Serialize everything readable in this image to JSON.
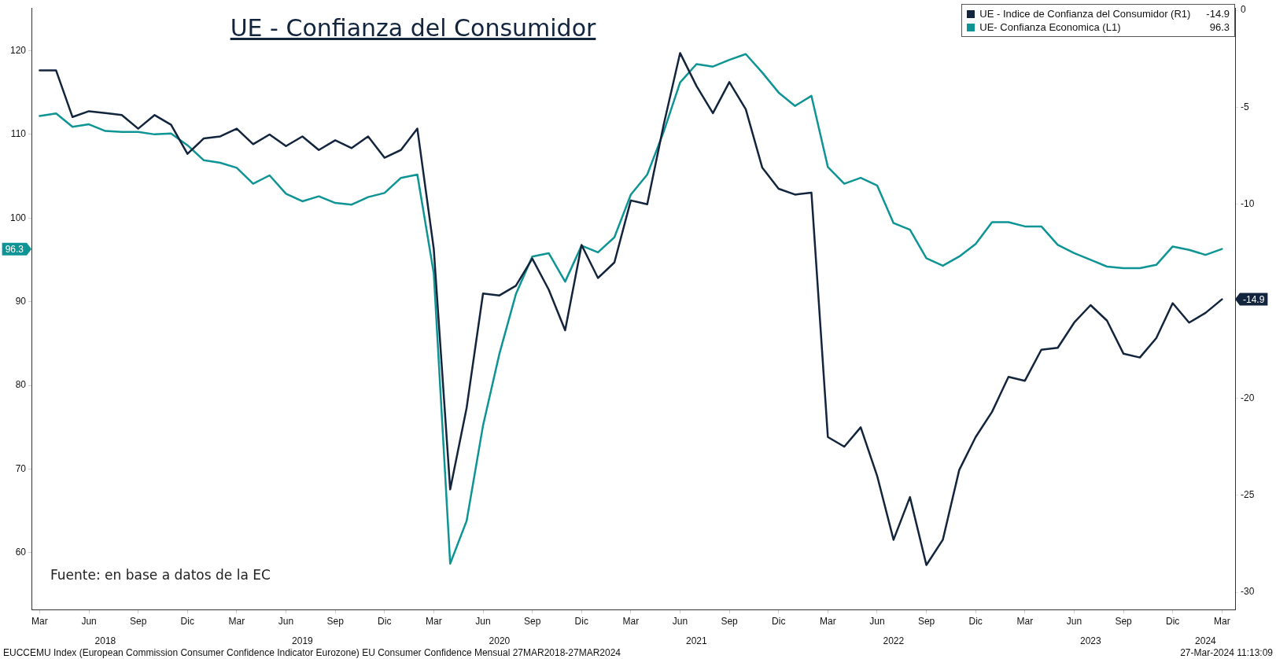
{
  "chart_data": {
    "type": "line",
    "title": "UE - Confianza del Consumidor",
    "x": [
      "2018-03",
      "2018-04",
      "2018-05",
      "2018-06",
      "2018-07",
      "2018-08",
      "2018-09",
      "2018-10",
      "2018-11",
      "2018-12",
      "2019-01",
      "2019-02",
      "2019-03",
      "2019-04",
      "2019-05",
      "2019-06",
      "2019-07",
      "2019-08",
      "2019-09",
      "2019-10",
      "2019-11",
      "2019-12",
      "2020-01",
      "2020-02",
      "2020-03",
      "2020-04",
      "2020-05",
      "2020-06",
      "2020-07",
      "2020-08",
      "2020-09",
      "2020-10",
      "2020-11",
      "2020-12",
      "2021-01",
      "2021-02",
      "2021-03",
      "2021-04",
      "2021-05",
      "2021-06",
      "2021-07",
      "2021-08",
      "2021-09",
      "2021-10",
      "2021-11",
      "2021-12",
      "2022-01",
      "2022-02",
      "2022-03",
      "2022-04",
      "2022-05",
      "2022-06",
      "2022-07",
      "2022-08",
      "2022-09",
      "2022-10",
      "2022-11",
      "2022-12",
      "2023-01",
      "2023-02",
      "2023-03",
      "2023-04",
      "2023-05",
      "2023-06",
      "2023-07",
      "2023-08",
      "2023-09",
      "2023-10",
      "2023-11",
      "2023-12",
      "2024-01",
      "2024-02",
      "2024-03"
    ],
    "series": [
      {
        "name": "UE - Indice de Confianza del Consumidor (R1)",
        "color": "#13243d",
        "axis": "y2",
        "values": [
          -3.1,
          -3.1,
          -5.5,
          -5.2,
          -5.3,
          -5.4,
          -6.1,
          -5.4,
          -5.9,
          -7.4,
          -6.6,
          -6.5,
          -6.1,
          -6.9,
          -6.4,
          -7.0,
          -6.5,
          -7.2,
          -6.7,
          -7.1,
          -6.5,
          -7.6,
          -7.2,
          -6.1,
          -12.3,
          -24.7,
          -20.5,
          -14.6,
          -14.7,
          -14.2,
          -12.8,
          -14.4,
          -16.5,
          -12.1,
          -13.8,
          -13.0,
          -9.8,
          -10.0,
          -5.9,
          -2.2,
          -3.9,
          -5.3,
          -3.7,
          -5.1,
          -8.1,
          -9.2,
          -9.5,
          -9.4,
          -22.0,
          -22.5,
          -21.5,
          -24.0,
          -27.3,
          -25.1,
          -28.6,
          -27.3,
          -23.7,
          -22.0,
          -20.7,
          -18.9,
          -19.1,
          -17.5,
          -17.4,
          -16.1,
          -15.2,
          -16.0,
          -17.7,
          -17.9,
          -16.9,
          -15.1,
          -16.1,
          -15.6,
          -14.9
        ]
      },
      {
        "name": "UE- Confianza Economica (L1)",
        "color": "#0e9494",
        "axis": "y",
        "values": [
          112.2,
          112.5,
          110.9,
          111.2,
          110.4,
          110.3,
          110.3,
          110.0,
          110.1,
          108.7,
          106.9,
          106.6,
          106.0,
          104.1,
          105.1,
          102.9,
          102.0,
          102.6,
          101.8,
          101.6,
          102.5,
          103.0,
          104.8,
          105.2,
          93.4,
          58.7,
          63.8,
          75.2,
          83.8,
          90.9,
          95.4,
          95.8,
          92.4,
          96.7,
          95.9,
          97.7,
          102.8,
          105.2,
          110.3,
          116.2,
          118.4,
          118.1,
          118.9,
          119.6,
          117.4,
          115.0,
          113.4,
          114.6,
          106.1,
          104.1,
          104.8,
          103.9,
          99.4,
          98.6,
          95.2,
          94.3,
          95.4,
          96.9,
          99.5,
          99.5,
          99.0,
          99.0,
          96.8,
          95.8,
          95.0,
          94.2,
          94.0,
          94.0,
          94.4,
          96.6,
          96.2,
          95.6,
          96.3
        ]
      }
    ],
    "xlim": [
      "2018-02-16",
      "2024-03-25"
    ],
    "xticks": [
      {
        "value": "2018-03",
        "label": "Mar"
      },
      {
        "value": "2018-06",
        "label": "Jun"
      },
      {
        "value": "2018-09",
        "label": "Sep"
      },
      {
        "value": "2018-12",
        "label": "Dic"
      },
      {
        "value": "2019-03",
        "label": "Mar"
      },
      {
        "value": "2019-06",
        "label": "Jun"
      },
      {
        "value": "2019-09",
        "label": "Sep"
      },
      {
        "value": "2019-12",
        "label": "Dic"
      },
      {
        "value": "2020-03",
        "label": "Mar"
      },
      {
        "value": "2020-06",
        "label": "Jun"
      },
      {
        "value": "2020-09",
        "label": "Sep"
      },
      {
        "value": "2020-12",
        "label": "Dic"
      },
      {
        "value": "2021-03",
        "label": "Mar"
      },
      {
        "value": "2021-06",
        "label": "Jun"
      },
      {
        "value": "2021-09",
        "label": "Sep"
      },
      {
        "value": "2021-12",
        "label": "Dic"
      },
      {
        "value": "2022-03",
        "label": "Mar"
      },
      {
        "value": "2022-06",
        "label": "Jun"
      },
      {
        "value": "2022-09",
        "label": "Sep"
      },
      {
        "value": "2022-12",
        "label": "Dic"
      },
      {
        "value": "2023-03",
        "label": "Mar"
      },
      {
        "value": "2023-06",
        "label": "Jun"
      },
      {
        "value": "2023-09",
        "label": "Sep"
      },
      {
        "value": "2023-12",
        "label": "Dic"
      },
      {
        "value": "2024-03",
        "label": "Mar"
      }
    ],
    "ylim": [
      53.2,
      125.1
    ],
    "yticks": [
      60,
      70,
      80,
      90,
      100,
      110,
      120,
      {
        "value": 96.3,
        "label": "96.3"
      }
    ],
    "y2lim": [
      -30.9,
      0.12
    ],
    "y2ticks": [
      0,
      -5,
      -10,
      -20,
      -25,
      -30,
      {
        "value": -14.9,
        "label": "-14.9"
      }
    ],
    "x2lim": [
      "2018-02-16",
      "2024-03-25"
    ],
    "x2ticks": [
      {
        "value": "2018-07",
        "label": "2018"
      },
      {
        "value": "2019-07",
        "label": "2019"
      },
      {
        "value": "2020-07",
        "label": "2020"
      },
      {
        "value": "2021-07",
        "label": "2021"
      },
      {
        "value": "2022-07",
        "label": "2022"
      },
      {
        "value": "2023-07",
        "label": "2023"
      },
      {
        "value": "2024-02",
        "label": "2024"
      }
    ],
    "legend": "top right",
    "marker": "none",
    "line_style": "solid",
    "grid": false,
    "annotations": [
      "Fuente: en base a datos de la EC",
      "EUCCEMU Index (European Commission Consumer Confidence Indicator Eurozone) EU Consumer Confidence  Mensual 27MAR2018-27MAR2024",
      "27-Mar-2024 11:13:09",
      "-14.9",
      "96.3"
    ]
  }
}
